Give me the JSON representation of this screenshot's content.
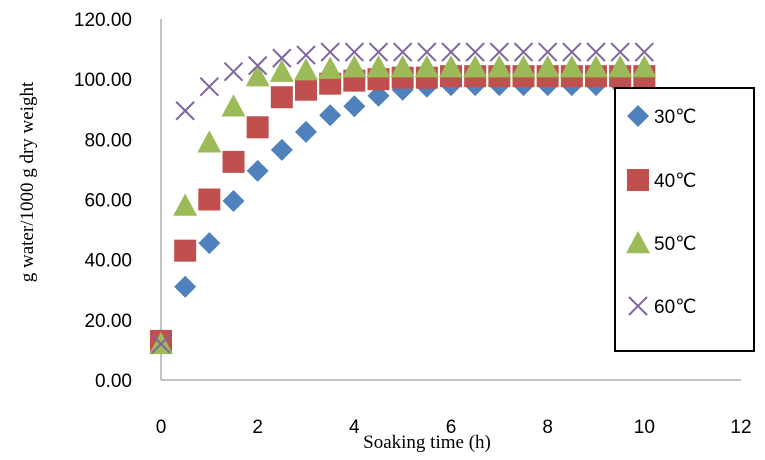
{
  "chart_data": {
    "type": "scatter",
    "xlabel": "Soaking time (h)",
    "ylabel": "g water/1000 g dry weight",
    "xlim": [
      0,
      12
    ],
    "ylim": [
      0,
      120
    ],
    "xticks": [
      "0",
      "2",
      "4",
      "6",
      "8",
      "10",
      "12"
    ],
    "yticks": [
      "0.00",
      "20.00",
      "40.00",
      "60.00",
      "80.00",
      "100.00",
      "120.00"
    ],
    "grid": false,
    "legend_position": "right",
    "series": [
      {
        "name": "30℃",
        "marker": "diamond",
        "color": "#4f81bd",
        "x": [
          0,
          0.5,
          1,
          1.5,
          2,
          2.5,
          3,
          3.5,
          4,
          4.5,
          5,
          5.5,
          6,
          6.5,
          7,
          7.5,
          8,
          8.5,
          9,
          9.5,
          10
        ],
        "y": [
          13,
          31,
          45.5,
          59.5,
          69.5,
          76.5,
          82.5,
          88,
          91,
          94.5,
          96.5,
          97.5,
          98,
          98,
          98,
          98,
          98,
          98,
          98,
          98,
          98
        ]
      },
      {
        "name": "40℃",
        "marker": "square",
        "color": "#c0504d",
        "x": [
          0,
          0.5,
          1,
          1.5,
          2,
          2.5,
          3,
          3.5,
          4,
          4.5,
          5,
          5.5,
          6,
          6.5,
          7,
          7.5,
          8,
          8.5,
          9,
          9.5,
          10
        ],
        "y": [
          13,
          43,
          60,
          72.5,
          84,
          94,
          96.5,
          98.5,
          99.5,
          100,
          100.5,
          100.5,
          101,
          101,
          101,
          101,
          101,
          101,
          101,
          101,
          101
        ]
      },
      {
        "name": "50℃",
        "marker": "triangle",
        "color": "#9bbb59",
        "x": [
          0,
          0.5,
          1,
          1.5,
          2,
          2.5,
          3,
          3.5,
          4,
          4.5,
          5,
          5.5,
          6,
          6.5,
          7,
          7.5,
          8,
          8.5,
          9,
          9.5,
          10
        ],
        "y": [
          12,
          58,
          79,
          91,
          101,
          102.5,
          103,
          103.5,
          104,
          104,
          104,
          104,
          104,
          104,
          104,
          104,
          104,
          104,
          104,
          104,
          104
        ]
      },
      {
        "name": "60℃",
        "marker": "x",
        "color": "#8064a2",
        "x": [
          0,
          0.5,
          1,
          1.5,
          2,
          2.5,
          3,
          3.5,
          4,
          4.5,
          5,
          5.5,
          6,
          6.5,
          7,
          7.5,
          8,
          8.5,
          9,
          9.5,
          10
        ],
        "y": [
          12,
          89.5,
          97.5,
          102.5,
          104.5,
          107,
          108,
          109,
          109,
          109,
          109,
          109,
          109,
          109,
          109,
          109,
          109,
          109,
          109,
          109,
          109
        ]
      }
    ]
  }
}
